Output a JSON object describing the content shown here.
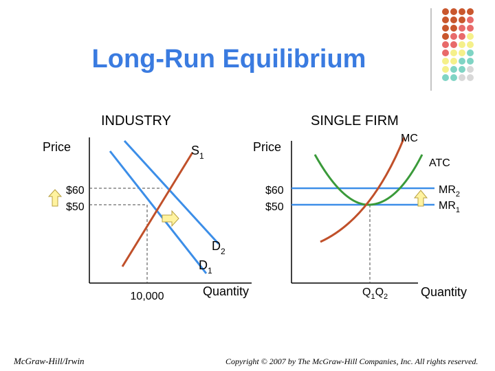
{
  "title": "Long-Run Equilibrium",
  "industry": {
    "heading": "INDUSTRY",
    "price_axis": "Price",
    "quantity_axis": "Quantity",
    "supply_label": "S",
    "supply_sub": "1",
    "demand2_label": "D",
    "demand2_sub": "2",
    "demand1_label": "D",
    "demand1_sub": "1",
    "price_high": "$60",
    "price_low": "$50",
    "quantity_value": "10,000"
  },
  "firm": {
    "heading": "SINGLE FIRM",
    "price_axis": "Price",
    "quantity_axis": "Quantity",
    "mc_label": "MC",
    "atc_label": "ATC",
    "mr2_label": "MR",
    "mr2_sub": "2",
    "mr1_label": "MR",
    "mr1_sub": "1",
    "price_high": "$60",
    "price_low": "$50",
    "q1_label": "Q",
    "q1_sub": "1",
    "q2_label": "Q",
    "q2_sub": "2"
  },
  "footer": {
    "publisher": "McGraw-Hill/Irwin",
    "copyright": "Copyright © 2007 by The McGraw-Hill Companies, Inc. All rights reserved."
  },
  "colors": {
    "title": "#3a7be0",
    "demand": "#3c8ee8",
    "supply": "#c0502a",
    "atc": "#3a9a3a",
    "arrow_fill": "#fff3a0",
    "arrow_stroke": "#b8a040"
  },
  "decor_dots": {
    "rows": [
      [
        "#c9572d",
        "#c9572d",
        "#c9572d",
        "#c9572d"
      ],
      [
        "#c9572d",
        "#c9572d",
        "#c9572d",
        "#e86a6a"
      ],
      [
        "#c9572d",
        "#c9572d",
        "#e86a6a",
        "#e86a6a"
      ],
      [
        "#c9572d",
        "#e86a6a",
        "#e86a6a",
        "#f5f08a"
      ],
      [
        "#e86a6a",
        "#e86a6a",
        "#f5f08a",
        "#f5f08a"
      ],
      [
        "#e86a6a",
        "#f5f08a",
        "#f5f08a",
        "#7fd4c4"
      ],
      [
        "#f5f08a",
        "#f5f08a",
        "#7fd4c4",
        "#7fd4c4"
      ],
      [
        "#f5f08a",
        "#7fd4c4",
        "#7fd4c4",
        "#d8d8d8"
      ],
      [
        "#7fd4c4",
        "#7fd4c4",
        "#d8d8d8",
        "#d8d8d8"
      ]
    ]
  }
}
